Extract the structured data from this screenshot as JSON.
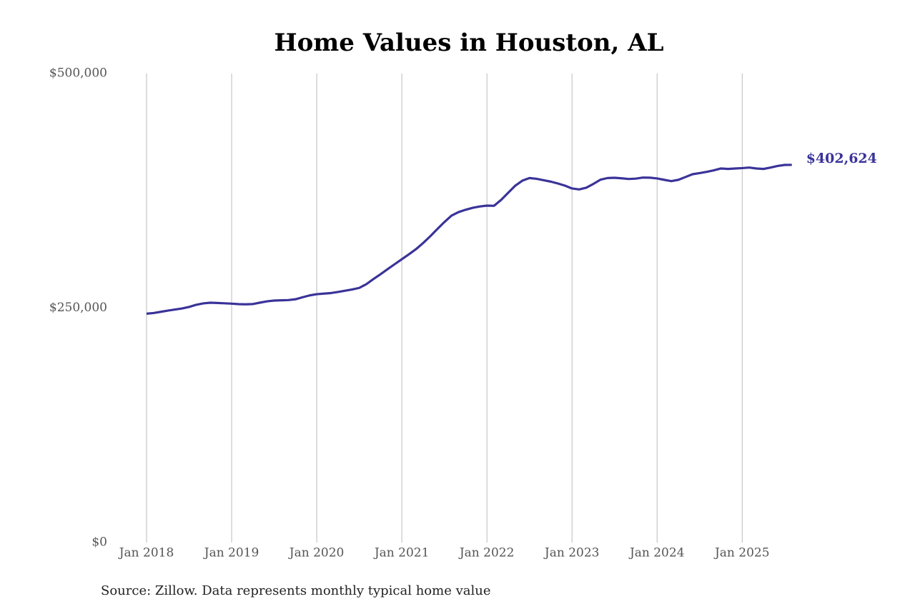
{
  "chart_data": {
    "type": "line",
    "title": "Home Values in Houston, AL",
    "note": "Source: Zillow. Data represents monthly typical home value",
    "x": [
      "2018-01",
      "2018-02",
      "2018-03",
      "2018-04",
      "2018-05",
      "2018-06",
      "2018-07",
      "2018-08",
      "2018-09",
      "2018-10",
      "2018-11",
      "2018-12",
      "2019-01",
      "2019-02",
      "2019-03",
      "2019-04",
      "2019-05",
      "2019-06",
      "2019-07",
      "2019-08",
      "2019-09",
      "2019-10",
      "2019-11",
      "2019-12",
      "2020-01",
      "2020-02",
      "2020-03",
      "2020-04",
      "2020-05",
      "2020-06",
      "2020-07",
      "2020-08",
      "2020-09",
      "2020-10",
      "2020-11",
      "2020-12",
      "2021-01",
      "2021-02",
      "2021-03",
      "2021-04",
      "2021-05",
      "2021-06",
      "2021-07",
      "2021-08",
      "2021-09",
      "2021-10",
      "2021-11",
      "2021-12",
      "2022-01",
      "2022-02",
      "2022-03",
      "2022-04",
      "2022-05",
      "2022-06",
      "2022-07",
      "2022-08",
      "2022-09",
      "2022-10",
      "2022-11",
      "2022-12",
      "2023-01",
      "2023-02",
      "2023-03",
      "2023-04",
      "2023-05",
      "2023-06",
      "2023-07",
      "2023-08",
      "2023-09",
      "2023-10",
      "2023-11",
      "2023-12",
      "2024-01",
      "2024-02",
      "2024-03",
      "2024-04",
      "2024-05",
      "2024-06",
      "2024-07",
      "2024-08",
      "2024-09",
      "2024-10",
      "2024-11",
      "2024-12",
      "2025-01",
      "2025-02",
      "2025-03",
      "2025-04",
      "2025-05",
      "2025-06",
      "2025-07",
      "2025-08"
    ],
    "series": [
      {
        "name": "Typical home value",
        "color": "#3a3399",
        "values": [
          244000,
          244700,
          246000,
          247300,
          248400,
          249600,
          251200,
          253500,
          255000,
          255700,
          255400,
          255100,
          254700,
          254200,
          254000,
          254300,
          255800,
          257200,
          258000,
          258300,
          258500,
          259400,
          261500,
          263500,
          264800,
          265400,
          266000,
          267200,
          268500,
          269800,
          271500,
          275500,
          281000,
          286100,
          291500,
          296800,
          302100,
          307300,
          312800,
          319300,
          326500,
          334200,
          341700,
          348500,
          352300,
          354800,
          356900,
          358300,
          359200,
          359000,
          365300,
          372900,
          380500,
          385800,
          388600,
          387800,
          386300,
          384800,
          382800,
          380500,
          377500,
          376500,
          378300,
          382300,
          386800,
          388600,
          388900,
          388300,
          387600,
          388000,
          389100,
          389000,
          388200,
          386700,
          385300,
          386700,
          389700,
          392700,
          393900,
          395200,
          396800,
          398800,
          398300,
          398800,
          399200,
          399800,
          398800,
          398300,
          399800,
          401500,
          402600,
          402624
        ],
        "value_labels": [
          null,
          null,
          null,
          null,
          null,
          null,
          null,
          null,
          null,
          null,
          null,
          null,
          null,
          null,
          null,
          null,
          null,
          null,
          null,
          null,
          null,
          null,
          null,
          null,
          null,
          null,
          null,
          null,
          null,
          null,
          null,
          null,
          null,
          null,
          null,
          null,
          null,
          null,
          null,
          null,
          null,
          null,
          null,
          null,
          null,
          null,
          null,
          null,
          null,
          null,
          null,
          null,
          null,
          null,
          null,
          null,
          null,
          null,
          null,
          null,
          null,
          null,
          null,
          null,
          null,
          null,
          null,
          null,
          null,
          null,
          null,
          null,
          null,
          null,
          null,
          null,
          null,
          null,
          null,
          null,
          null,
          null,
          null,
          null,
          null,
          null,
          null,
          null,
          null,
          null,
          null,
          "$402,624"
        ]
      }
    ],
    "xticks": [
      {
        "value": "2018-01",
        "label": "Jan 2018"
      },
      {
        "value": "2019-01",
        "label": "Jan 2019"
      },
      {
        "value": "2020-01",
        "label": "Jan 2020"
      },
      {
        "value": "2021-01",
        "label": "Jan 2021"
      },
      {
        "value": "2022-01",
        "label": "Jan 2022"
      },
      {
        "value": "2023-01",
        "label": "Jan 2023"
      },
      {
        "value": "2024-01",
        "label": "Jan 2024"
      },
      {
        "value": "2025-01",
        "label": "Jan 2025"
      }
    ],
    "ylim": [
      0,
      500000
    ],
    "yticks": [
      {
        "value": 0,
        "label": "$0"
      },
      {
        "value": 250000,
        "label": "$250,000"
      },
      {
        "value": 500000,
        "label": "$500,000"
      }
    ],
    "grid": "x"
  }
}
